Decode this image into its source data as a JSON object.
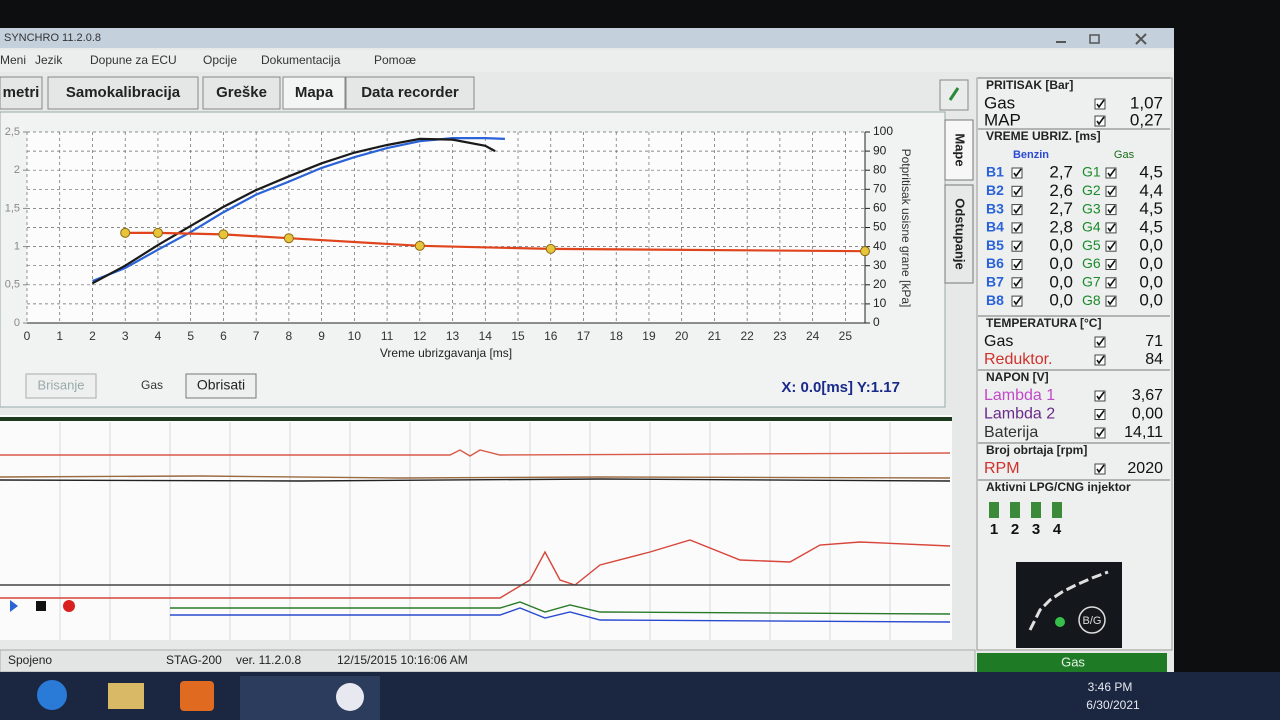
{
  "window": {
    "title": "SYNCHRO 11.2.0.8"
  },
  "menu": [
    "Meni",
    "Jezik",
    "Dopune za ECU",
    "Opcije",
    "Dokumentacija",
    "Pomoæ"
  ],
  "tabs": [
    "metri",
    "Samokalibracija",
    "Greške",
    "Mapa",
    "Data recorder"
  ],
  "side_tabs": [
    "Mape",
    "Odstupanje"
  ],
  "chart_data": {
    "type": "line",
    "xlabel": "Vreme ubrizgavanja [ms]",
    "y2label": "Potpritisak usisne grane [kPa]",
    "xlim": [
      0,
      25.6
    ],
    "xticks": [
      0,
      1,
      2,
      3,
      4,
      5,
      6,
      7,
      8,
      9,
      10,
      11,
      12,
      13,
      14,
      15,
      16,
      17,
      18,
      19,
      20,
      21,
      22,
      23,
      24,
      25
    ],
    "ylim": [
      0,
      2.5
    ],
    "yticks": [
      0,
      {
        "value": 0.5,
        "label": "0,5"
      },
      1,
      {
        "value": 1.5,
        "label": "1,5"
      },
      2,
      {
        "value": 2.5,
        "label": "2,5"
      }
    ],
    "y2lim": [
      0,
      100
    ],
    "y2ticks": [
      0,
      10,
      20,
      30,
      40,
      50,
      60,
      70,
      80,
      90,
      100
    ],
    "grid": true,
    "series": [
      {
        "color": "#2a62d8",
        "x": [
          2,
          3,
          4,
          5,
          6,
          7,
          8,
          9,
          10,
          11,
          12,
          13,
          14,
          14.6
        ],
        "values": [
          0.55,
          0.72,
          0.96,
          1.19,
          1.45,
          1.68,
          1.85,
          2.03,
          2.17,
          2.29,
          2.38,
          2.42,
          2.42,
          2.41
        ]
      },
      {
        "color": "#1a1a1a",
        "x": [
          2,
          3,
          4,
          5,
          6,
          7,
          8,
          9,
          10,
          11,
          12,
          13,
          14,
          14.3
        ],
        "values": [
          0.52,
          0.75,
          1.02,
          1.27,
          1.52,
          1.74,
          1.92,
          2.09,
          2.23,
          2.33,
          2.41,
          2.4,
          2.32,
          2.25
        ]
      },
      {
        "color": "#e0441c",
        "markers": true,
        "marker_color": "#e8c43a",
        "x": [
          3,
          4,
          6,
          8,
          12,
          16,
          25.6
        ],
        "values": [
          1.18,
          1.18,
          1.16,
          1.11,
          1.01,
          0.97,
          0.94
        ]
      }
    ]
  },
  "controls": {
    "clear_left": "Brisanje",
    "gas_label": "Gas",
    "clear": "Obrisati",
    "cursor": "X:  0.0[ms] Y:1.17"
  },
  "pressure": {
    "title": "PRITISAK [Bar]",
    "rows": [
      {
        "label": "Gas",
        "value": "1,07",
        "color": "#111"
      },
      {
        "label": "MAP",
        "value": "0,27",
        "color": "#111"
      }
    ]
  },
  "injection": {
    "title": "VREME UBRIZ. [ms]",
    "headers": [
      "Benzin",
      "Gas"
    ],
    "rows": [
      {
        "b": "B1",
        "bv": "2,7",
        "g": "G1",
        "gv": "4,5"
      },
      {
        "b": "B2",
        "bv": "2,6",
        "g": "G2",
        "gv": "4,4"
      },
      {
        "b": "B3",
        "bv": "2,7",
        "g": "G3",
        "gv": "4,5"
      },
      {
        "b": "B4",
        "bv": "2,8",
        "g": "G4",
        "gv": "4,5"
      },
      {
        "b": "B5",
        "bv": "0,0",
        "g": "G5",
        "gv": "0,0"
      },
      {
        "b": "B6",
        "bv": "0,0",
        "g": "G6",
        "gv": "0,0"
      },
      {
        "b": "B7",
        "bv": "0,0",
        "g": "G7",
        "gv": "0,0"
      },
      {
        "b": "B8",
        "bv": "0,0",
        "g": "G8",
        "gv": "0,0"
      }
    ]
  },
  "temperature": {
    "title": "TEMPERATURA [°C]",
    "rows": [
      {
        "label": "Gas",
        "value": "71",
        "color": "#111"
      },
      {
        "label": "Reduktor.",
        "value": "84",
        "color": "#d0302a"
      }
    ]
  },
  "voltage": {
    "title": "NAPON [V]",
    "rows": [
      {
        "label": "Lambda 1",
        "value": "3,67",
        "color": "#c04ac8"
      },
      {
        "label": "Lambda 2",
        "value": "0,00",
        "color": "#6a2a8a"
      },
      {
        "label": "Baterija",
        "value": "14,11",
        "color": "#333"
      }
    ]
  },
  "rpm": {
    "title": "Broj obrtaja [rpm]",
    "rows": [
      {
        "label": "RPM",
        "value": "2020",
        "color": "#d0302a"
      }
    ]
  },
  "injectors": {
    "title": "Aktivni LPG/CNG injektor",
    "items": [
      "1",
      "2",
      "3",
      "4"
    ]
  },
  "logo": "B/G",
  "fuel_indicator": "Gas",
  "status": [
    "Spojeno",
    "STAG-200",
    "ver. 11.2.0.8",
    "12/15/2015 10:16:06 AM"
  ],
  "taskbar": {
    "time": "3:46 PM",
    "date": "6/30/2021"
  }
}
